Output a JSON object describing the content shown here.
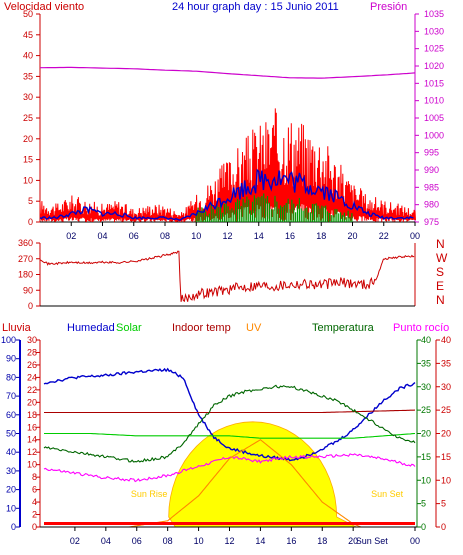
{
  "colors": {
    "wind": "#ff0000",
    "wind_avg": "#0000cc",
    "wind_green": "#009900",
    "pressure": "#cc00cc",
    "direction": "#cc0000",
    "humidity": "#0000cc",
    "solar": "#00cc00",
    "indoor": "#aa0000",
    "uv": "#ff8800",
    "temperature": "#006600",
    "dewpoint": "#ff00ff",
    "rain": "#ff0000",
    "axis_lluvia": "#cc0000",
    "axis_hum": "#0000aa",
    "axis_temp": "#007700",
    "axis_red": "#cc0000",
    "sun_fill": "#ffff00"
  },
  "chart_data": [
    {
      "type": "line",
      "title": "24 hour graph day : 15 Junio 2011",
      "ylabel_left": "Velocidad viento",
      "ylabel_right": "Presión",
      "x_ticks": [
        "02",
        "04",
        "06",
        "08",
        "10",
        "12",
        "14",
        "16",
        "18",
        "20",
        "22",
        "00"
      ],
      "x_range_hours": [
        0,
        24
      ],
      "y_left_ticks": [
        "0",
        "5",
        "10",
        "15",
        "20",
        "25",
        "30",
        "35",
        "40",
        "45",
        "50"
      ],
      "y_left_range": [
        0,
        50
      ],
      "y_right_ticks": [
        "975",
        "980",
        "985",
        "990",
        "995",
        "1000",
        "1005",
        "1010",
        "1015",
        "1020",
        "1025",
        "1030",
        "1035"
      ],
      "y_right_range": [
        975,
        1035
      ],
      "series": [
        {
          "key": "gust",
          "color_key": "wind",
          "x": [
            0,
            1,
            2,
            3,
            4,
            5,
            6,
            7,
            8,
            9,
            10,
            11,
            12,
            13,
            14,
            15,
            16,
            17,
            18,
            19,
            20,
            21,
            22,
            23,
            24
          ],
          "values": [
            5,
            4,
            6,
            5,
            4,
            5,
            3,
            4,
            4,
            2,
            6,
            10,
            14,
            18,
            22,
            25,
            24,
            22,
            20,
            14,
            9,
            6,
            5,
            4,
            3
          ]
        },
        {
          "key": "avg",
          "color_key": "wind_avg",
          "x": [
            0,
            1,
            2,
            3,
            4,
            5,
            6,
            7,
            8,
            9,
            10,
            11,
            12,
            13,
            14,
            15,
            16,
            17,
            18,
            19,
            20,
            21,
            22,
            23,
            24
          ],
          "values": [
            1,
            1,
            2,
            3,
            2,
            2,
            1,
            1,
            1,
            0.5,
            2,
            4,
            6,
            8,
            10,
            11,
            10,
            9,
            8,
            6,
            4,
            2,
            1,
            1,
            1
          ]
        },
        {
          "key": "green",
          "color_key": "wind_green",
          "x": [
            10,
            11,
            12,
            13,
            14,
            15,
            16,
            17,
            18,
            19,
            20
          ],
          "values": [
            3,
            4,
            5,
            5,
            6,
            6,
            5,
            5,
            4,
            3,
            2
          ]
        },
        {
          "key": "pressure",
          "color_key": "pressure",
          "axis": "right",
          "x": [
            0,
            2,
            4,
            6,
            8,
            10,
            12,
            14,
            16,
            18,
            20,
            22,
            24
          ],
          "values": [
            1019.5,
            1019.6,
            1019.4,
            1019.2,
            1018.8,
            1018.5,
            1017.8,
            1017.2,
            1016.6,
            1016.5,
            1016.9,
            1017.4,
            1018
          ]
        }
      ]
    },
    {
      "type": "line",
      "title": "",
      "ylabel_right": [
        "N",
        "W",
        "S",
        "E",
        "N"
      ],
      "y_left_ticks": [
        "0",
        "90",
        "180",
        "270",
        "360"
      ],
      "y_left_range": [
        0,
        360
      ],
      "series": [
        {
          "key": "direction",
          "color_key": "direction",
          "x": [
            0,
            0.5,
            1.5,
            2,
            3,
            4,
            5,
            6,
            7,
            8,
            8.5,
            8.9,
            9,
            9.5,
            10,
            11,
            12,
            13,
            14,
            15,
            16,
            17,
            18,
            19,
            20,
            21,
            21.5,
            22,
            23,
            24
          ],
          "values": [
            270,
            240,
            245,
            250,
            245,
            250,
            248,
            255,
            270,
            290,
            300,
            310,
            30,
            50,
            70,
            80,
            95,
            110,
            120,
            115,
            125,
            130,
            120,
            135,
            130,
            125,
            150,
            270,
            280,
            285
          ]
        }
      ]
    },
    {
      "type": "line",
      "title": "",
      "legend": [
        "Lluvia",
        "Humedad",
        "Solar",
        "Indoor temp",
        "UV",
        "Temperatura",
        "Punto rocío"
      ],
      "x_ticks": [
        "02",
        "04",
        "06",
        "08",
        "10",
        "12",
        "14",
        "16",
        "18",
        "20",
        "Sun Set",
        "00"
      ],
      "y_axes": [
        {
          "label": "Lluvia",
          "ticks": [
            "0",
            "10",
            "20",
            "30",
            "40",
            "50",
            "60",
            "70",
            "80",
            "90",
            "100"
          ],
          "range": [
            0,
            100
          ]
        },
        {
          "label": "Humedad",
          "ticks": [
            "0",
            "2",
            "4",
            "6",
            "8",
            "10",
            "12",
            "14",
            "16",
            "18",
            "20",
            "22",
            "24",
            "26",
            "28",
            "30"
          ],
          "range": [
            0,
            30
          ]
        },
        {
          "label": "Temperatura",
          "ticks": [
            "0",
            "5",
            "10",
            "15",
            "20",
            "25",
            "30",
            "35",
            "40"
          ],
          "range": [
            0,
            40
          ]
        },
        {
          "label": "Punto rocío",
          "ticks": [
            "0",
            "5",
            "10",
            "15",
            "20",
            "25",
            "30",
            "35",
            "40"
          ],
          "range": [
            0,
            40
          ]
        }
      ],
      "annotations": [
        "Sun Rise",
        "Sun Set"
      ],
      "series": [
        {
          "key": "humidity",
          "color_key": "humidity",
          "axis": 0,
          "x": [
            0,
            2,
            4,
            6,
            8,
            9,
            10,
            11,
            12,
            13,
            14,
            15,
            16,
            17,
            18,
            19,
            20,
            21,
            22,
            23,
            24
          ],
          "values": [
            77,
            80,
            81,
            83,
            84,
            80,
            60,
            48,
            42,
            40,
            38,
            37,
            36,
            38,
            42,
            46,
            52,
            60,
            68,
            74,
            77
          ]
        },
        {
          "key": "solar",
          "color_key": "solar",
          "axis": 2,
          "x": [
            0,
            3,
            6,
            9,
            12,
            14,
            16,
            18,
            20,
            22,
            24
          ],
          "values": [
            20,
            20,
            19.5,
            19.5,
            19.5,
            19,
            19,
            19,
            19,
            19.5,
            20
          ]
        },
        {
          "key": "indoor",
          "color_key": "indoor",
          "axis": 2,
          "x": [
            0,
            6,
            12,
            18,
            24
          ],
          "values": [
            24.5,
            24.5,
            24.5,
            24.5,
            25
          ]
        },
        {
          "key": "temperature",
          "color_key": "temperature",
          "axis": 2,
          "x": [
            0,
            2,
            4,
            6,
            8,
            9,
            10,
            11,
            12,
            13,
            14,
            15,
            16,
            17,
            18,
            19,
            20,
            21,
            22,
            23,
            24
          ],
          "values": [
            17,
            16,
            15,
            14,
            15,
            18,
            22,
            26,
            28,
            29,
            29.5,
            30,
            30,
            29,
            28,
            27,
            25,
            23,
            21,
            19,
            18
          ]
        },
        {
          "key": "dewpoint",
          "color_key": "dewpoint",
          "axis": 2,
          "x": [
            0,
            2,
            4,
            6,
            8,
            10,
            12,
            14,
            16,
            18,
            20,
            22,
            24
          ],
          "values": [
            12.5,
            11.5,
            10.5,
            10,
            11,
            13,
            15,
            14,
            15,
            15,
            15.5,
            14.5,
            13
          ]
        },
        {
          "key": "uv",
          "color_key": "uv",
          "axis": 1,
          "x": [
            5.5,
            8,
            10,
            12,
            14,
            16,
            18,
            20,
            20.5
          ],
          "values": [
            0,
            1,
            5,
            11,
            14,
            10,
            4,
            0.5,
            0
          ]
        }
      ]
    }
  ]
}
